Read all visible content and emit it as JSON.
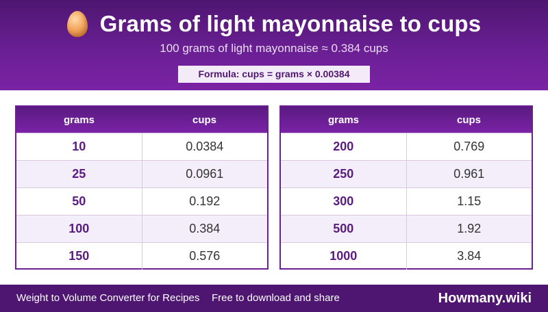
{
  "header": {
    "icon": "egg-icon",
    "title": "Grams of light mayonnaise to cups",
    "subtitle": "100 grams of light mayonnaise ≈ 0.384 cups",
    "formula": "Formula: cups = grams × 0.00384"
  },
  "tables": [
    {
      "headers": [
        "grams",
        "cups"
      ],
      "rows": [
        {
          "grams": "10",
          "cups": "0.0384"
        },
        {
          "grams": "25",
          "cups": "0.0961"
        },
        {
          "grams": "50",
          "cups": "0.192"
        },
        {
          "grams": "100",
          "cups": "0.384"
        },
        {
          "grams": "150",
          "cups": "0.576"
        }
      ]
    },
    {
      "headers": [
        "grams",
        "cups"
      ],
      "rows": [
        {
          "grams": "200",
          "cups": "0.769"
        },
        {
          "grams": "250",
          "cups": "0.961"
        },
        {
          "grams": "300",
          "cups": "1.15"
        },
        {
          "grams": "500",
          "cups": "1.92"
        },
        {
          "grams": "1000",
          "cups": "3.84"
        }
      ]
    }
  ],
  "footer": {
    "left": "Weight to Volume Converter for Recipes",
    "middle": "Free to download and share",
    "brand": "Howmany.wiki"
  },
  "colors": {
    "primary": "#6a1f93",
    "dark": "#4e1670",
    "alt_row": "#f4eefa"
  }
}
